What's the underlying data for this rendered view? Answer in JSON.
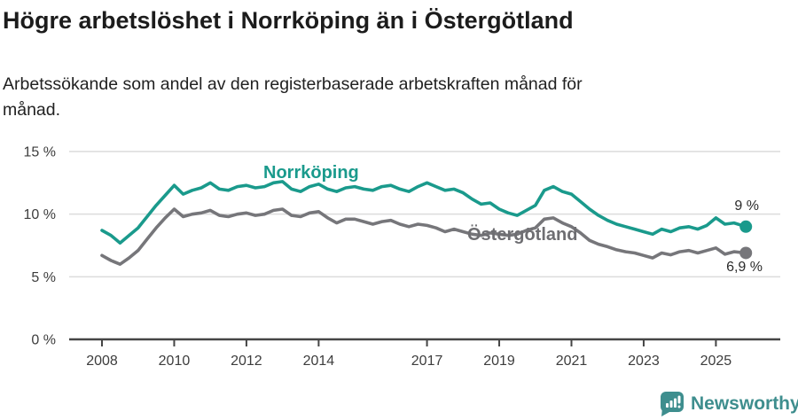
{
  "header": {
    "title": "Högre arbetslöshet i Norrköping än i Östergötland",
    "subtitle_lines": [
      "Arbetssökande som andel av den registerbaserade arbetskraften månad för",
      "månad."
    ]
  },
  "chart_data": {
    "type": "line",
    "title": "Högre arbetslöshet i Norrköping än i Östergötland",
    "unit": "%",
    "grid": "horizontal",
    "legend_position": "inline-labels",
    "x_axis": {
      "ticks": [
        2008,
        2010,
        2012,
        2014,
        2017,
        2019,
        2021,
        2023,
        2025
      ],
      "range": [
        2008,
        2025.83
      ]
    },
    "y_axis": {
      "ticks": [
        0,
        5,
        10,
        15
      ],
      "tick_labels": [
        "0 %",
        "5 %",
        "10 %",
        "15 %"
      ],
      "range": [
        0,
        15
      ]
    },
    "x": [
      2008.0,
      2008.25,
      2008.5,
      2008.75,
      2009.0,
      2009.25,
      2009.5,
      2009.75,
      2010.0,
      2010.25,
      2010.5,
      2010.75,
      2011.0,
      2011.25,
      2011.5,
      2011.75,
      2012.0,
      2012.25,
      2012.5,
      2012.75,
      2013.0,
      2013.25,
      2013.5,
      2013.75,
      2014.0,
      2014.25,
      2014.5,
      2014.75,
      2015.0,
      2015.25,
      2015.5,
      2015.75,
      2016.0,
      2016.25,
      2016.5,
      2016.75,
      2017.0,
      2017.25,
      2017.5,
      2017.75,
      2018.0,
      2018.25,
      2018.5,
      2018.75,
      2019.0,
      2019.25,
      2019.5,
      2019.75,
      2020.0,
      2020.25,
      2020.5,
      2020.75,
      2021.0,
      2021.25,
      2021.5,
      2021.75,
      2022.0,
      2022.25,
      2022.5,
      2022.75,
      2023.0,
      2023.25,
      2023.5,
      2023.75,
      2024.0,
      2024.25,
      2024.5,
      2024.75,
      2025.0,
      2025.25,
      2025.5,
      2025.83
    ],
    "series": [
      {
        "name": "Norrköping",
        "color": "#1a9a8c",
        "end_label": "9 %",
        "end_value": 9.0,
        "values": [
          8.7,
          8.3,
          7.7,
          8.3,
          8.9,
          9.8,
          10.7,
          11.5,
          12.3,
          11.6,
          11.9,
          12.1,
          12.5,
          12.0,
          11.9,
          12.2,
          12.3,
          12.1,
          12.2,
          12.5,
          12.6,
          12.0,
          11.8,
          12.2,
          12.4,
          12.0,
          11.8,
          12.1,
          12.2,
          12.0,
          11.9,
          12.2,
          12.3,
          12.0,
          11.8,
          12.2,
          12.5,
          12.2,
          11.9,
          12.0,
          11.7,
          11.2,
          10.8,
          10.9,
          10.4,
          10.1,
          9.9,
          10.3,
          10.7,
          11.9,
          12.2,
          11.8,
          11.6,
          11.0,
          10.4,
          9.9,
          9.5,
          9.2,
          9.0,
          8.8,
          8.6,
          8.4,
          8.8,
          8.6,
          8.9,
          9.0,
          8.8,
          9.1,
          9.7,
          9.2,
          9.3,
          9.0
        ]
      },
      {
        "name": "Östergötland",
        "color": "#76767a",
        "end_label": "6,9 %",
        "end_value": 6.9,
        "values": [
          6.7,
          6.3,
          6.0,
          6.5,
          7.1,
          8.0,
          8.9,
          9.7,
          10.4,
          9.8,
          10.0,
          10.1,
          10.3,
          9.9,
          9.8,
          10.0,
          10.1,
          9.9,
          10.0,
          10.3,
          10.4,
          9.9,
          9.8,
          10.1,
          10.2,
          9.7,
          9.3,
          9.6,
          9.6,
          9.4,
          9.2,
          9.4,
          9.5,
          9.2,
          9.0,
          9.2,
          9.1,
          8.9,
          8.6,
          8.8,
          8.6,
          8.4,
          8.3,
          8.5,
          8.4,
          8.3,
          8.4,
          8.7,
          8.9,
          9.6,
          9.7,
          9.3,
          9.0,
          8.5,
          7.9,
          7.6,
          7.4,
          7.15,
          7.0,
          6.9,
          6.7,
          6.5,
          6.9,
          6.75,
          7.0,
          7.1,
          6.9,
          7.1,
          7.3,
          6.8,
          7.0,
          6.9
        ]
      }
    ],
    "colors": {
      "gridline": "#dcdcdc",
      "axis": "#454545",
      "tick_text": "#3d3d3d"
    }
  },
  "footer": {
    "brand": "Newsworthy",
    "brand_color": "#3e8e8e",
    "logo_icon": "bar-chart-speech-bubble-icon"
  }
}
